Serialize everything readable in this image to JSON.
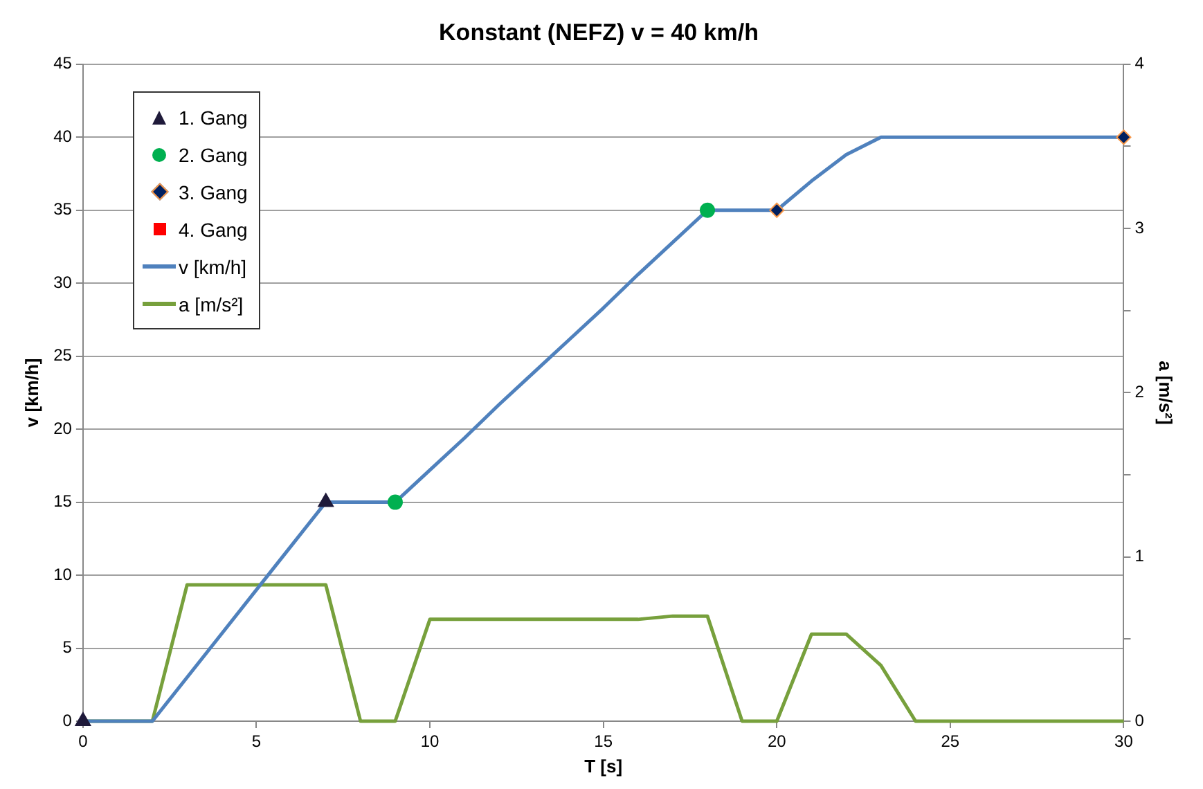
{
  "chart_data": {
    "type": "line",
    "title": "Konstant (NEFZ) v = 40 km/h",
    "xlabel": "T [s]",
    "ylabel": "v [km/h]",
    "y2label": "a [m/s²]",
    "xlim": [
      0,
      30
    ],
    "xticks": [
      0,
      5,
      10,
      15,
      20,
      25,
      30
    ],
    "ylim": [
      0,
      45
    ],
    "yticks": [
      0,
      5,
      10,
      15,
      20,
      25,
      30,
      35,
      40,
      45
    ],
    "y2lim": [
      0,
      4
    ],
    "y2ticks": [
      0,
      1,
      2,
      3,
      4
    ],
    "grid": "y",
    "legend": "top left",
    "series": [
      {
        "name": "1. Gang",
        "type": "scatter",
        "marker": "triangle",
        "color": "#1f1a3a",
        "x": [
          0,
          7
        ],
        "values": [
          0,
          15
        ]
      },
      {
        "name": "2. Gang",
        "type": "scatter",
        "marker": "circle",
        "color": "#00b050",
        "x": [
          9,
          18
        ],
        "values": [
          15,
          35
        ]
      },
      {
        "name": "3. Gang",
        "type": "scatter",
        "marker": "diamond",
        "color": "#002060",
        "x": [
          20,
          30
        ],
        "values": [
          35,
          40
        ]
      },
      {
        "name": "4. Gang",
        "type": "scatter",
        "marker": "square",
        "color": "#ff0000"
      },
      {
        "name": "v [km/h]",
        "type": "line",
        "marker": "none",
        "color": "#4f81bd",
        "x": [
          0,
          1,
          2,
          3,
          4,
          5,
          6,
          7,
          8,
          9,
          10,
          11,
          12,
          13,
          14,
          15,
          16,
          17,
          18,
          19,
          20,
          21,
          22,
          23,
          24,
          25,
          26,
          27,
          28,
          29,
          30
        ],
        "values": [
          0,
          0,
          0,
          3,
          6,
          9,
          12,
          15,
          15,
          15,
          17.2,
          19.4,
          21.7,
          23.9,
          26.1,
          28.3,
          30.6,
          32.8,
          35,
          35,
          35,
          37,
          38.8,
          40,
          40,
          40,
          40,
          40,
          40,
          40,
          40
        ]
      },
      {
        "name": "a [m/s²]",
        "type": "line",
        "marker": "none",
        "axis": "y2",
        "color": "#77a03c",
        "x": [
          0,
          1,
          2,
          3,
          4,
          5,
          6,
          7,
          8,
          9,
          10,
          11,
          12,
          13,
          14,
          15,
          16,
          17,
          18,
          19,
          20,
          21,
          22,
          23,
          24,
          25,
          26,
          27,
          28,
          29,
          30
        ],
        "values": [
          0,
          0,
          0,
          0.83,
          0.83,
          0.83,
          0.83,
          0.83,
          0,
          0,
          0.62,
          0.62,
          0.62,
          0.62,
          0.62,
          0.62,
          0.62,
          0.64,
          0.64,
          0,
          0,
          0.53,
          0.53,
          0.34,
          0,
          0,
          0,
          0,
          0,
          0,
          0
        ]
      }
    ]
  }
}
